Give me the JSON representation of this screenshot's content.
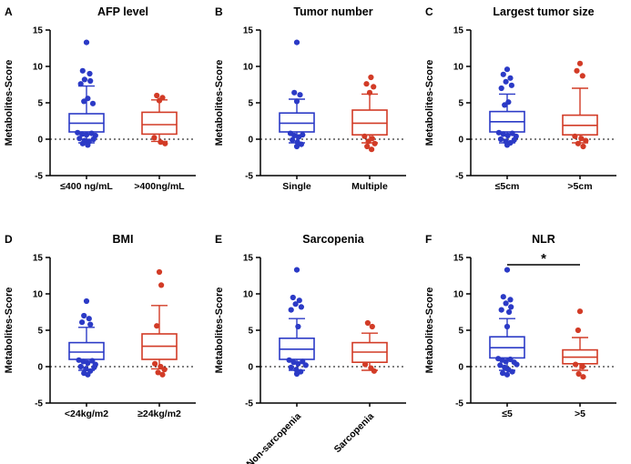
{
  "figure": {
    "background": "#ffffff",
    "ylabel": "Metabolites-Score",
    "ylim": [
      -5,
      15
    ],
    "yticks": [
      -5,
      0,
      5,
      10,
      15
    ],
    "zero_line": 0,
    "colors": {
      "group1": "#2b3ac6",
      "group2": "#d23b26"
    }
  },
  "chart_data": [
    {
      "type": "box",
      "panel": "A",
      "title": "AFP level",
      "ylabel": "Metabolites-Score",
      "ylim": [
        -5,
        15
      ],
      "groups": [
        {
          "label": "≤400 ng/mL",
          "color": "#2b3ac6",
          "box": {
            "whisker_low": -0.5,
            "q1": 1.0,
            "median": 2.2,
            "q3": 3.5,
            "whisker_high": 7.3
          },
          "points": [
            [
              0.0,
              13.3
            ],
            [
              -0.3,
              9.4
            ],
            [
              0.25,
              9.0
            ],
            [
              -0.15,
              8.2
            ],
            [
              0.3,
              8.0
            ],
            [
              -0.45,
              7.6
            ],
            [
              0.1,
              5.6
            ],
            [
              -0.2,
              5.2
            ],
            [
              0.5,
              4.9
            ],
            [
              -0.7,
              0.9
            ],
            [
              -0.35,
              0.7
            ],
            [
              0.0,
              0.6
            ],
            [
              0.4,
              0.8
            ],
            [
              0.7,
              0.5
            ],
            [
              -0.55,
              0.1
            ],
            [
              -0.15,
              -0.2
            ],
            [
              0.2,
              -0.3
            ],
            [
              0.55,
              0.0
            ],
            [
              -0.3,
              -0.6
            ],
            [
              0.1,
              -0.8
            ]
          ]
        },
        {
          "label": ">400ng/mL",
          "color": "#d23b26",
          "box": {
            "whisker_low": -0.3,
            "q1": 0.7,
            "median": 2.0,
            "q3": 3.7,
            "whisker_high": 5.4
          },
          "points": [
            [
              -0.2,
              6.0
            ],
            [
              0.25,
              5.7
            ],
            [
              0.0,
              5.3
            ],
            [
              -0.4,
              0.2
            ],
            [
              0.1,
              -0.4
            ],
            [
              0.45,
              -0.6
            ]
          ]
        }
      ]
    },
    {
      "type": "box",
      "panel": "B",
      "title": "Tumor number",
      "ylabel": "Metabolites-Score",
      "ylim": [
        -5,
        15
      ],
      "groups": [
        {
          "label": "Single",
          "color": "#2b3ac6",
          "box": {
            "whisker_low": -0.5,
            "q1": 1.0,
            "median": 2.2,
            "q3": 3.6,
            "whisker_high": 5.5
          },
          "points": [
            [
              0.0,
              13.3
            ],
            [
              -0.2,
              6.4
            ],
            [
              0.25,
              6.1
            ],
            [
              0.0,
              5.2
            ],
            [
              -0.5,
              0.8
            ],
            [
              -0.2,
              0.5
            ],
            [
              0.15,
              0.3
            ],
            [
              0.45,
              0.6
            ],
            [
              -0.35,
              -0.1
            ],
            [
              0.05,
              -0.4
            ],
            [
              0.35,
              -0.7
            ],
            [
              0.0,
              -1.0
            ]
          ]
        },
        {
          "label": "Multiple",
          "color": "#d23b26",
          "box": {
            "whisker_low": -0.5,
            "q1": 0.6,
            "median": 2.2,
            "q3": 4.0,
            "whisker_high": 6.2
          },
          "points": [
            [
              0.1,
              8.5
            ],
            [
              -0.25,
              7.6
            ],
            [
              0.3,
              7.2
            ],
            [
              0.0,
              6.4
            ],
            [
              -0.4,
              0.4
            ],
            [
              0.2,
              0.1
            ],
            [
              -0.1,
              -0.3
            ],
            [
              0.4,
              -0.6
            ],
            [
              -0.2,
              -1.0
            ],
            [
              0.15,
              -1.4
            ]
          ]
        }
      ]
    },
    {
      "type": "box",
      "panel": "C",
      "title": "Largest tumor size",
      "ylabel": "Metabolites-Score",
      "ylim": [
        -5,
        15
      ],
      "groups": [
        {
          "label": "≤5cm",
          "color": "#2b3ac6",
          "box": {
            "whisker_low": -0.5,
            "q1": 1.0,
            "median": 2.4,
            "q3": 3.8,
            "whisker_high": 6.2
          },
          "points": [
            [
              0.0,
              9.6
            ],
            [
              -0.3,
              8.9
            ],
            [
              0.25,
              8.4
            ],
            [
              -0.1,
              7.9
            ],
            [
              0.35,
              7.4
            ],
            [
              -0.45,
              7.0
            ],
            [
              0.1,
              5.1
            ],
            [
              -0.2,
              4.7
            ],
            [
              -0.65,
              0.9
            ],
            [
              -0.3,
              0.7
            ],
            [
              0.05,
              0.5
            ],
            [
              0.4,
              0.8
            ],
            [
              0.7,
              0.4
            ],
            [
              -0.5,
              0.0
            ],
            [
              -0.1,
              -0.3
            ],
            [
              0.25,
              -0.5
            ],
            [
              0.55,
              -0.1
            ],
            [
              0.0,
              -0.8
            ]
          ]
        },
        {
          "label": ">5cm",
          "color": "#d23b26",
          "box": {
            "whisker_low": -0.5,
            "q1": 0.6,
            "median": 1.9,
            "q3": 3.3,
            "whisker_high": 7.0
          },
          "points": [
            [
              0.0,
              10.4
            ],
            [
              -0.25,
              9.4
            ],
            [
              0.2,
              8.7
            ],
            [
              -0.4,
              0.4
            ],
            [
              0.1,
              0.1
            ],
            [
              0.45,
              -0.2
            ],
            [
              -0.15,
              -0.6
            ],
            [
              0.25,
              -1.0
            ]
          ]
        }
      ]
    },
    {
      "type": "box",
      "panel": "D",
      "title": "BMI",
      "ylabel": "Metabolites-Score",
      "ylim": [
        -5,
        15
      ],
      "groups": [
        {
          "label": "<24kg/m2",
          "color": "#2b3ac6",
          "box": {
            "whisker_low": -0.5,
            "q1": 1.0,
            "median": 2.0,
            "q3": 3.3,
            "whisker_high": 5.4
          },
          "points": [
            [
              0.0,
              9.0
            ],
            [
              -0.2,
              7.0
            ],
            [
              0.2,
              6.6
            ],
            [
              -0.35,
              6.1
            ],
            [
              0.3,
              5.8
            ],
            [
              -0.6,
              0.9
            ],
            [
              -0.25,
              0.7
            ],
            [
              0.1,
              0.5
            ],
            [
              0.45,
              0.8
            ],
            [
              0.7,
              0.3
            ],
            [
              -0.45,
              0.0
            ],
            [
              -0.05,
              -0.3
            ],
            [
              0.3,
              -0.6
            ],
            [
              0.6,
              -0.1
            ],
            [
              -0.2,
              -0.9
            ],
            [
              0.1,
              -1.1
            ]
          ]
        },
        {
          "label": "≥24kg/m2",
          "color": "#d23b26",
          "box": {
            "whisker_low": -0.3,
            "q1": 1.0,
            "median": 2.8,
            "q3": 4.5,
            "whisker_high": 8.4
          },
          "points": [
            [
              0.0,
              13.0
            ],
            [
              0.15,
              11.2
            ],
            [
              -0.2,
              5.6
            ],
            [
              -0.35,
              0.4
            ],
            [
              0.1,
              0.0
            ],
            [
              0.4,
              -0.4
            ],
            [
              -0.1,
              -0.8
            ],
            [
              0.25,
              -1.1
            ]
          ]
        }
      ]
    },
    {
      "type": "box",
      "panel": "E",
      "title": "Sarcopenia",
      "ylabel": "Metabolites-Score",
      "ylim": [
        -5,
        15
      ],
      "rotate_xlabels": true,
      "groups": [
        {
          "label": "Non-sarcopenia",
          "color": "#2b3ac6",
          "box": {
            "whisker_low": -0.5,
            "q1": 1.0,
            "median": 2.4,
            "q3": 3.9,
            "whisker_high": 6.6
          },
          "points": [
            [
              0.0,
              13.3
            ],
            [
              -0.3,
              9.5
            ],
            [
              0.2,
              9.1
            ],
            [
              -0.1,
              8.6
            ],
            [
              0.35,
              8.2
            ],
            [
              -0.45,
              7.8
            ],
            [
              0.1,
              5.5
            ],
            [
              -0.6,
              0.9
            ],
            [
              -0.25,
              0.6
            ],
            [
              0.1,
              0.4
            ],
            [
              0.45,
              0.7
            ],
            [
              0.7,
              0.2
            ],
            [
              -0.45,
              -0.1
            ],
            [
              -0.05,
              -0.4
            ],
            [
              0.3,
              -0.7
            ],
            [
              0.0,
              -1.0
            ]
          ]
        },
        {
          "label": "Sarcopenia",
          "color": "#d23b26",
          "box": {
            "whisker_low": -0.5,
            "q1": 0.6,
            "median": 2.0,
            "q3": 3.3,
            "whisker_high": 4.6
          },
          "points": [
            [
              -0.15,
              6.0
            ],
            [
              0.2,
              5.5
            ],
            [
              -0.35,
              0.3
            ],
            [
              0.1,
              -0.2
            ],
            [
              0.35,
              -0.6
            ]
          ]
        }
      ]
    },
    {
      "type": "box",
      "panel": "F",
      "title": "NLR",
      "ylabel": "Metabolites-Score",
      "ylim": [
        -5,
        15
      ],
      "significance": "*",
      "groups": [
        {
          "label": "≤5",
          "color": "#2b3ac6",
          "box": {
            "whisker_low": -0.5,
            "q1": 1.2,
            "median": 2.6,
            "q3": 4.1,
            "whisker_high": 6.6
          },
          "points": [
            [
              0.0,
              13.3
            ],
            [
              -0.3,
              9.6
            ],
            [
              0.25,
              9.2
            ],
            [
              -0.1,
              8.7
            ],
            [
              0.3,
              8.2
            ],
            [
              -0.45,
              7.8
            ],
            [
              0.15,
              7.5
            ],
            [
              0.0,
              5.5
            ],
            [
              -0.7,
              1.1
            ],
            [
              -0.4,
              0.9
            ],
            [
              -0.1,
              0.7
            ],
            [
              0.25,
              1.0
            ],
            [
              0.55,
              0.6
            ],
            [
              0.75,
              0.3
            ],
            [
              -0.55,
              0.2
            ],
            [
              -0.2,
              -0.1
            ],
            [
              0.1,
              -0.4
            ],
            [
              0.4,
              -0.7
            ],
            [
              -0.35,
              -0.9
            ],
            [
              0.0,
              -1.1
            ]
          ]
        },
        {
          "label": ">5",
          "color": "#d23b26",
          "box": {
            "whisker_low": -0.5,
            "q1": 0.4,
            "median": 1.3,
            "q3": 2.3,
            "whisker_high": 4.0
          },
          "points": [
            [
              0.0,
              7.6
            ],
            [
              -0.15,
              5.0
            ],
            [
              -0.35,
              0.3
            ],
            [
              0.2,
              0.0
            ],
            [
              -0.1,
              -1.0
            ],
            [
              0.25,
              -1.4
            ]
          ]
        }
      ]
    }
  ]
}
